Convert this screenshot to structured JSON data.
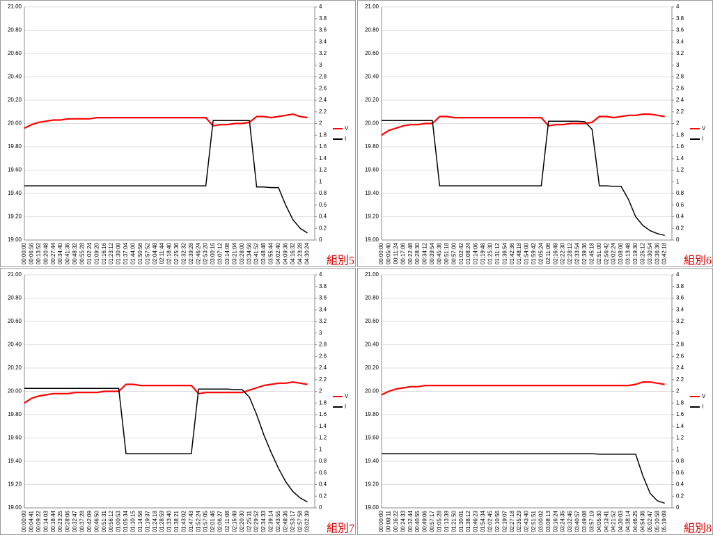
{
  "chart_data": [
    {
      "type": "line",
      "annotation": "組別5",
      "categories": [
        "00:00:00",
        "00:06:56",
        "00:13:52",
        "00:20:48",
        "00:27:44",
        "00:34:40",
        "00:41:36",
        "00:48:32",
        "00:55:28",
        "01:02:24",
        "01:09:20",
        "01:16:16",
        "01:23:12",
        "01:30:08",
        "01:37:04",
        "01:44:00",
        "01:50:56",
        "01:57:52",
        "02:04:48",
        "02:11:44",
        "02:18:40",
        "02:25:36",
        "02:32:32",
        "02:39:28",
        "02:46:24",
        "02:53:20",
        "03:00:16",
        "03:07:12",
        "03:14:08",
        "03:21:04",
        "03:28:00",
        "03:34:56",
        "03:41:52",
        "03:48:48",
        "03:55:44",
        "04:02:40",
        "04:09:36",
        "04:16:32",
        "04:23:28",
        "04:30:24"
      ],
      "series": [
        {
          "name": "V",
          "color": "#ff0000",
          "values": [
            19.96,
            19.99,
            20.01,
            20.02,
            20.03,
            20.03,
            20.04,
            20.04,
            20.04,
            20.04,
            20.05,
            20.05,
            20.05,
            20.05,
            20.05,
            20.05,
            20.05,
            20.05,
            20.05,
            20.05,
            20.05,
            20.05,
            20.05,
            20.05,
            20.05,
            20.05,
            19.98,
            19.99,
            19.99,
            20.0,
            20.0,
            20.01,
            20.06,
            20.06,
            20.05,
            20.06,
            20.07,
            20.08,
            20.06,
            20.05
          ]
        },
        {
          "name": "I",
          "color": "#000000",
          "axis": "y2",
          "values": [
            0.93,
            0.93,
            0.93,
            0.93,
            0.93,
            0.93,
            0.93,
            0.93,
            0.93,
            0.93,
            0.93,
            0.93,
            0.93,
            0.93,
            0.93,
            0.93,
            0.93,
            0.93,
            0.93,
            0.93,
            0.93,
            0.93,
            0.93,
            0.93,
            0.93,
            0.93,
            2.05,
            2.05,
            2.05,
            2.05,
            2.05,
            2.05,
            0.91,
            0.91,
            0.9,
            0.9,
            0.6,
            0.35,
            0.2,
            0.12
          ]
        }
      ],
      "ylim": [
        19,
        21
      ],
      "yticks": [
        {
          "value": 19,
          "label": "19.00"
        },
        {
          "value": 19.2,
          "label": "19.20"
        },
        {
          "value": 19.4,
          "label": "19.40"
        },
        {
          "value": 19.6,
          "label": "19.60"
        },
        {
          "value": 19.8,
          "label": "19.80"
        },
        {
          "value": 20,
          "label": "20.00"
        },
        {
          "value": 20.2,
          "label": "20.20"
        },
        {
          "value": 20.4,
          "label": "20.40"
        },
        {
          "value": 20.6,
          "label": "20.60"
        },
        {
          "value": 20.8,
          "label": "20.80"
        },
        {
          "value": 21,
          "label": "21.00"
        }
      ],
      "y2lim": [
        0,
        4
      ],
      "y2ticks": [
        0,
        0.2,
        0.4,
        0.6,
        0.8,
        1,
        1.2,
        1.4,
        1.6,
        1.8,
        2,
        2.2,
        2.4,
        2.6,
        2.8,
        3,
        3.2,
        3.4,
        3.6,
        3.8,
        4
      ],
      "grid": true,
      "legend": "right"
    },
    {
      "type": "line",
      "annotation": "組別6",
      "categories": [
        "00:00:00",
        "00:05:40",
        "00:11:24",
        "00:17:06",
        "00:22:48",
        "00:28:30",
        "00:34:12",
        "00:39:54",
        "00:45:36",
        "00:51:18",
        "00:57:00",
        "01:02:42",
        "01:08:24",
        "01:14:06",
        "01:19:48",
        "01:25:30",
        "01:31:12",
        "01:36:54",
        "01:42:36",
        "01:48:18",
        "01:54:00",
        "01:59:42",
        "02:05:24",
        "02:11:06",
        "02:16:48",
        "02:22:30",
        "02:28:12",
        "02:33:54",
        "02:39:36",
        "02:45:18",
        "02:51:00",
        "02:56:42",
        "03:02:24",
        "03:08:06",
        "03:13:48",
        "03:19:30",
        "03:25:12",
        "03:30:54",
        "03:36:36",
        "03:42:18"
      ],
      "series": [
        {
          "name": "V",
          "color": "#ff0000",
          "values": [
            19.9,
            19.94,
            19.96,
            19.98,
            19.99,
            19.99,
            20.0,
            20.0,
            20.06,
            20.06,
            20.05,
            20.05,
            20.05,
            20.05,
            20.05,
            20.05,
            20.05,
            20.05,
            20.05,
            20.05,
            20.05,
            20.05,
            20.05,
            19.98,
            19.99,
            19.99,
            20.0,
            20.0,
            20.0,
            20.01,
            20.06,
            20.06,
            20.05,
            20.06,
            20.07,
            20.07,
            20.08,
            20.08,
            20.07,
            20.06
          ]
        },
        {
          "name": "I",
          "color": "#000000",
          "axis": "y2",
          "values": [
            2.05,
            2.05,
            2.05,
            2.05,
            2.05,
            2.05,
            2.05,
            2.05,
            0.93,
            0.93,
            0.93,
            0.93,
            0.93,
            0.93,
            0.93,
            0.93,
            0.93,
            0.93,
            0.93,
            0.93,
            0.93,
            0.93,
            0.93,
            2.04,
            2.04,
            2.04,
            2.04,
            2.04,
            2.03,
            1.9,
            0.93,
            0.93,
            0.92,
            0.92,
            0.7,
            0.4,
            0.25,
            0.16,
            0.11,
            0.08
          ]
        }
      ],
      "ylim": [
        19,
        21
      ],
      "yticks": [
        {
          "value": 19,
          "label": "19.00"
        },
        {
          "value": 19.2,
          "label": "19.20"
        },
        {
          "value": 19.4,
          "label": "19.40"
        },
        {
          "value": 19.6,
          "label": "19.60"
        },
        {
          "value": 19.8,
          "label": "19.80"
        },
        {
          "value": 20,
          "label": "20.00"
        },
        {
          "value": 20.2,
          "label": "20.20"
        },
        {
          "value": 20.4,
          "label": "20.40"
        },
        {
          "value": 20.6,
          "label": "20.60"
        },
        {
          "value": 20.8,
          "label": "20.80"
        },
        {
          "value": 21,
          "label": "21.00"
        }
      ],
      "y2lim": [
        0,
        4
      ],
      "y2ticks": [
        0,
        0.2,
        0.4,
        0.6,
        0.8,
        1,
        1.2,
        1.4,
        1.6,
        1.8,
        2,
        2.2,
        2.4,
        2.6,
        2.8,
        3,
        3.2,
        3.4,
        3.6,
        3.8,
        4
      ],
      "grid": true,
      "legend": "right"
    },
    {
      "type": "line",
      "annotation": "組別7",
      "categories": [
        "00:00:00",
        "00:04:41",
        "00:09:22",
        "00:14:03",
        "00:18:44",
        "00:23:25",
        "00:28:06",
        "00:32:47",
        "00:37:28",
        "00:42:09",
        "00:46:50",
        "00:51:31",
        "00:56:12",
        "01:00:53",
        "01:05:34",
        "01:10:15",
        "01:14:56",
        "01:19:37",
        "01:24:18",
        "01:28:59",
        "01:33:40",
        "01:38:21",
        "01:43:02",
        "01:47:43",
        "01:52:24",
        "01:57:05",
        "02:01:46",
        "02:06:27",
        "02:11:08",
        "02:15:49",
        "02:20:30",
        "02:25:11",
        "02:29:52",
        "02:34:33",
        "02:39:14",
        "02:43:55",
        "02:48:36",
        "02:53:17",
        "02:57:58",
        "03:02:39"
      ],
      "series": [
        {
          "name": "V",
          "color": "#ff0000",
          "values": [
            19.9,
            19.94,
            19.96,
            19.97,
            19.98,
            19.98,
            19.98,
            19.99,
            19.99,
            19.99,
            19.99,
            20.0,
            20.0,
            20.0,
            20.06,
            20.06,
            20.05,
            20.05,
            20.05,
            20.05,
            20.05,
            20.05,
            20.05,
            20.05,
            19.98,
            19.99,
            19.99,
            19.99,
            19.99,
            19.99,
            19.99,
            20.01,
            20.03,
            20.05,
            20.06,
            20.07,
            20.07,
            20.08,
            20.07,
            20.06
          ]
        },
        {
          "name": "I",
          "color": "#000000",
          "axis": "y2",
          "values": [
            2.05,
            2.05,
            2.05,
            2.05,
            2.05,
            2.05,
            2.05,
            2.05,
            2.05,
            2.05,
            2.05,
            2.05,
            2.05,
            2.05,
            0.93,
            0.93,
            0.93,
            0.93,
            0.93,
            0.93,
            0.93,
            0.93,
            0.93,
            0.93,
            2.04,
            2.04,
            2.04,
            2.04,
            2.04,
            2.03,
            2.03,
            1.9,
            1.6,
            1.25,
            0.95,
            0.68,
            0.45,
            0.28,
            0.17,
            0.1
          ]
        }
      ],
      "ylim": [
        19,
        21
      ],
      "yticks": [
        {
          "value": 19,
          "label": "19.00"
        },
        {
          "value": 19.2,
          "label": "19.20"
        },
        {
          "value": 19.4,
          "label": "19.40"
        },
        {
          "value": 19.6,
          "label": "19.60"
        },
        {
          "value": 19.8,
          "label": "19.80"
        },
        {
          "value": 20,
          "label": "20.00"
        },
        {
          "value": 20.2,
          "label": "20.20"
        },
        {
          "value": 20.4,
          "label": "20.40"
        },
        {
          "value": 20.6,
          "label": "20.60"
        },
        {
          "value": 20.8,
          "label": "20.80"
        },
        {
          "value": 21,
          "label": "21.00"
        }
      ],
      "y2lim": [
        0,
        4
      ],
      "y2ticks": [
        0,
        0.2,
        0.4,
        0.6,
        0.8,
        1,
        1.2,
        1.4,
        1.6,
        1.8,
        2,
        2.2,
        2.4,
        2.6,
        2.8,
        3,
        3.2,
        3.4,
        3.6,
        3.8,
        4
      ],
      "grid": true,
      "legend": "right"
    },
    {
      "type": "line",
      "annotation": "組別8",
      "categories": [
        "00:00:00",
        "00:08:11",
        "00:16:22",
        "00:24:33",
        "00:32:44",
        "00:40:55",
        "00:49:06",
        "00:57:17",
        "01:05:28",
        "01:13:39",
        "01:21:50",
        "01:30:01",
        "01:38:12",
        "01:46:23",
        "01:54:34",
        "02:02:45",
        "02:10:56",
        "02:19:07",
        "02:27:18",
        "02:35:29",
        "02:43:40",
        "02:51:51",
        "03:00:02",
        "03:08:13",
        "03:16:24",
        "03:24:35",
        "03:32:46",
        "03:40:57",
        "03:49:08",
        "03:57:19",
        "04:05:30",
        "04:13:41",
        "04:21:52",
        "04:30:03",
        "04:38:14",
        "04:46:25",
        "04:54:36",
        "05:02:47",
        "05:10:58",
        "05:19:09"
      ],
      "series": [
        {
          "name": "V",
          "color": "#ff0000",
          "values": [
            19.97,
            20.0,
            20.02,
            20.03,
            20.04,
            20.04,
            20.05,
            20.05,
            20.05,
            20.05,
            20.05,
            20.05,
            20.05,
            20.05,
            20.05,
            20.05,
            20.05,
            20.05,
            20.05,
            20.05,
            20.05,
            20.05,
            20.05,
            20.05,
            20.05,
            20.05,
            20.05,
            20.05,
            20.05,
            20.05,
            20.05,
            20.05,
            20.05,
            20.05,
            20.05,
            20.06,
            20.08,
            20.08,
            20.07,
            20.06
          ]
        },
        {
          "name": "I",
          "color": "#000000",
          "axis": "y2",
          "values": [
            0.93,
            0.93,
            0.93,
            0.93,
            0.93,
            0.93,
            0.93,
            0.93,
            0.93,
            0.93,
            0.93,
            0.93,
            0.93,
            0.93,
            0.93,
            0.93,
            0.93,
            0.93,
            0.93,
            0.93,
            0.93,
            0.93,
            0.93,
            0.93,
            0.93,
            0.93,
            0.93,
            0.93,
            0.93,
            0.93,
            0.92,
            0.92,
            0.92,
            0.92,
            0.92,
            0.92,
            0.55,
            0.25,
            0.12,
            0.08
          ]
        }
      ],
      "ylim": [
        19,
        21
      ],
      "yticks": [
        {
          "value": 19,
          "label": "19.00"
        },
        {
          "value": 19.2,
          "label": "19.20"
        },
        {
          "value": 19.4,
          "label": "19.40"
        },
        {
          "value": 19.6,
          "label": "19.60"
        },
        {
          "value": 19.8,
          "label": "19.80"
        },
        {
          "value": 20,
          "label": "20.00"
        },
        {
          "value": 20.2,
          "label": "20.20"
        },
        {
          "value": 20.4,
          "label": "20.40"
        },
        {
          "value": 20.6,
          "label": "20.60"
        },
        {
          "value": 20.8,
          "label": "20.80"
        },
        {
          "value": 21,
          "label": "21.00"
        }
      ],
      "y2lim": [
        0,
        4
      ],
      "y2ticks": [
        0,
        0.2,
        0.4,
        0.6,
        0.8,
        1,
        1.2,
        1.4,
        1.6,
        1.8,
        2,
        2.2,
        2.4,
        2.6,
        2.8,
        3,
        3.2,
        3.4,
        3.6,
        3.8,
        4
      ],
      "grid": true,
      "legend": "right"
    }
  ]
}
